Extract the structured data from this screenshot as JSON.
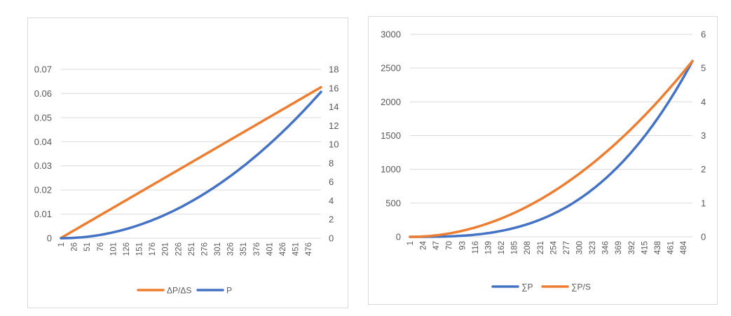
{
  "colors": {
    "orange": "#ED7D31",
    "blue": "#4472C4",
    "grid": "#d9d9d9",
    "text": "#595959"
  },
  "chart_data": [
    {
      "type": "line",
      "title": "",
      "x_categories_shown": [
        "1",
        "26",
        "51",
        "76",
        "101",
        "126",
        "151",
        "176",
        "201",
        "226",
        "251",
        "276",
        "301",
        "326",
        "351",
        "376",
        "401",
        "426",
        "451",
        "476"
      ],
      "x_range": [
        1,
        500
      ],
      "y_left": {
        "ticks": [
          "0",
          "0.01",
          "0.02",
          "0.03",
          "0.04",
          "0.05",
          "0.06",
          "0.07"
        ],
        "range": [
          0,
          0.07
        ]
      },
      "y_right": {
        "ticks": [
          "0",
          "2",
          "4",
          "6",
          "8",
          "10",
          "12",
          "14",
          "16",
          "18"
        ],
        "range": [
          0,
          18
        ]
      },
      "grid": "horizontal",
      "legend_position": "bottom",
      "series": [
        {
          "name": "ΔP/ΔS",
          "axis": "left",
          "color": "#ED7D31",
          "shape": "linear",
          "x": [
            1,
            500
          ],
          "y": [
            0.0001,
            0.0626
          ]
        },
        {
          "name": "P",
          "axis": "right",
          "color": "#4472C4",
          "shape": "quadratic",
          "x": [
            1,
            100,
            200,
            300,
            400,
            500
          ],
          "y": [
            0,
            0.62,
            2.5,
            5.6,
            10.0,
            15.6
          ]
        }
      ]
    },
    {
      "type": "line",
      "title": "",
      "x_categories_shown": [
        "1",
        "24",
        "47",
        "70",
        "93",
        "116",
        "139",
        "162",
        "185",
        "208",
        "231",
        "254",
        "277",
        "300",
        "323",
        "346",
        "369",
        "392",
        "415",
        "438",
        "461",
        "484"
      ],
      "x_range": [
        1,
        500
      ],
      "y_left": {
        "ticks": [
          "0",
          "500",
          "1000",
          "1500",
          "2000",
          "2500",
          "3000"
        ],
        "range": [
          0,
          3000
        ]
      },
      "y_right": {
        "ticks": [
          "0",
          "1",
          "2",
          "3",
          "4",
          "5",
          "6"
        ],
        "range": [
          0,
          6
        ]
      },
      "grid": "horizontal",
      "legend_position": "bottom",
      "series": [
        {
          "name": "∑P",
          "axis": "left",
          "color": "#4472C4",
          "shape": "cubic",
          "x": [
            1,
            100,
            200,
            300,
            400,
            500
          ],
          "y": [
            0,
            21,
            167,
            562,
            1333,
            2604
          ]
        },
        {
          "name": "∑P/S",
          "axis": "right",
          "color": "#ED7D31",
          "shape": "quadratic",
          "x": [
            1,
            100,
            200,
            300,
            400,
            500
          ],
          "y": [
            0,
            0.21,
            0.83,
            1.88,
            3.33,
            5.21
          ]
        }
      ]
    }
  ]
}
